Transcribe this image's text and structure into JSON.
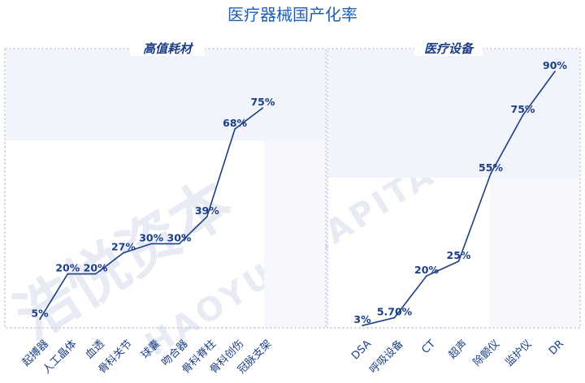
{
  "title": "医疗器械国产化率",
  "watermark": {
    "chinese": "浩悦资本",
    "english": "HAOYUE CAPITAL"
  },
  "colors": {
    "line": "#1b3e86",
    "title": "#1f5fb4",
    "frame": "#b7bdd4",
    "fill": "#f2f4fb"
  },
  "chart_data": [
    {
      "type": "line",
      "title": "高值耗材",
      "categories": [
        "起搏器",
        "人工晶体",
        "血透",
        "骨科关节",
        "球囊",
        "吻合器",
        "骨科脊柱",
        "骨科创伤",
        "冠脉支架"
      ],
      "values": [
        5,
        20,
        20,
        27,
        30,
        30,
        39,
        68,
        75
      ],
      "labels": [
        "5%",
        "20%",
        "20%",
        "27%",
        "30%",
        "30%",
        "39%",
        "68%",
        "75%"
      ],
      "ylim": [
        0,
        100
      ],
      "grid": false,
      "legend": "none"
    },
    {
      "type": "line",
      "title": "医疗设备",
      "categories": [
        "DSA",
        "呼吸设备",
        "CT",
        "超声",
        "除颤仪",
        "监护仪",
        "DR"
      ],
      "values": [
        3,
        5.7,
        20,
        25,
        55,
        75,
        90
      ],
      "labels": [
        "3%",
        "5.70%",
        "20%",
        "25%",
        "55%",
        "75%",
        "90%"
      ],
      "ylim": [
        0,
        100
      ],
      "grid": false,
      "legend": "none"
    }
  ]
}
